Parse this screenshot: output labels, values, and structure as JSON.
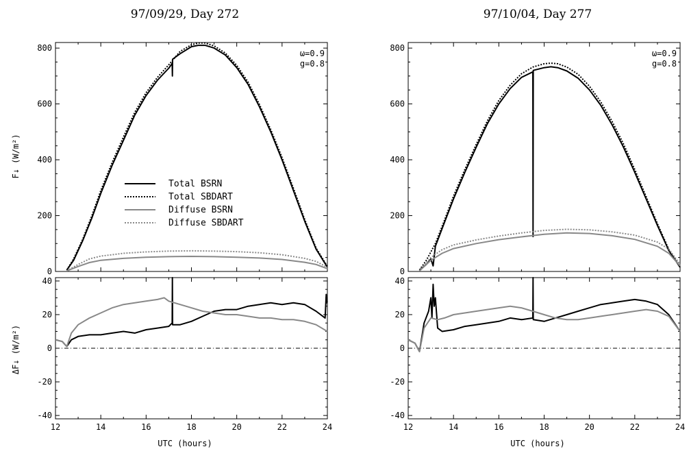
{
  "colors": {
    "black": "#000000",
    "gray": "#888888"
  },
  "chart_data": [
    {
      "type": "line",
      "title": "97/09/29, Day 272",
      "xlabel": "UTC (hours)",
      "annotation": [
        "ω=0.9",
        "g=0.8"
      ],
      "legend": {
        "position": "center-left",
        "entries": [
          "Total BSRN",
          "Total SBDART",
          "Diffuse BSRN",
          "Diffuse SBDART"
        ]
      },
      "xlim": [
        12,
        24
      ],
      "x_ticks": [
        12,
        14,
        16,
        18,
        20,
        22,
        24
      ],
      "top": {
        "ylabel": "F↓ (W/m²)",
        "ylim": [
          0,
          820
        ],
        "y_ticks": [
          0,
          200,
          400,
          600,
          800
        ],
        "series": [
          {
            "name": "Total BSRN",
            "style": "solid",
            "color": "#000000",
            "x": [
              12.5,
              12.8,
              13.2,
              13.6,
              14.0,
              14.5,
              15.0,
              15.5,
              16.0,
              16.5,
              17.0,
              17.15,
              17.16,
              17.17,
              17.5,
              18.0,
              18.3,
              18.6,
              19.0,
              19.5,
              20.0,
              20.5,
              21.0,
              21.5,
              22.0,
              22.5,
              23.0,
              23.5,
              24.0
            ],
            "y": [
              5,
              40,
              110,
              190,
              280,
              380,
              470,
              560,
              630,
              685,
              728,
              745,
              700,
              760,
              780,
              805,
              810,
              810,
              800,
              775,
              730,
              670,
              590,
              500,
              400,
              290,
              180,
              80,
              15
            ]
          },
          {
            "name": "Total SBDART",
            "style": "dotted",
            "color": "#000000",
            "x": [
              12.5,
              12.8,
              13.2,
              13.6,
              14.0,
              14.5,
              15.0,
              15.5,
              16.0,
              16.5,
              17.0,
              17.5,
              18.0,
              18.3,
              18.6,
              19.0,
              19.5,
              20.0,
              20.5,
              21.0,
              21.5,
              22.0,
              22.5,
              23.0,
              23.5,
              24.0
            ],
            "y": [
              5,
              45,
              115,
              198,
              290,
              390,
              482,
              570,
              640,
              695,
              740,
              788,
              812,
              818,
              818,
              808,
              782,
              738,
              678,
              598,
              508,
              408,
              298,
              186,
              84,
              18
            ]
          },
          {
            "name": "Diffuse BSRN",
            "style": "solid",
            "color": "#888888",
            "x": [
              12.5,
              13.0,
              13.5,
              14.0,
              15.0,
              16.0,
              17.0,
              18.0,
              19.0,
              20.0,
              21.0,
              22.0,
              23.0,
              23.5,
              24.0
            ],
            "y": [
              2,
              18,
              32,
              40,
              47,
              51,
              53,
              54,
              53,
              51,
              48,
              43,
              33,
              25,
              10
            ]
          },
          {
            "name": "Diffuse SBDART",
            "style": "dotted",
            "color": "#888888",
            "x": [
              12.5,
              13.0,
              13.5,
              14.0,
              15.0,
              16.0,
              17.0,
              18.0,
              19.0,
              20.0,
              21.0,
              22.0,
              23.0,
              23.5,
              24.0
            ],
            "y": [
              2,
              25,
              45,
              55,
              65,
              70,
              73,
              74,
              73,
              71,
              67,
              60,
              47,
              36,
              15
            ]
          }
        ]
      },
      "bottom": {
        "ylabel": "ΔF↓ (W/m²)",
        "ylim": [
          -42,
          42
        ],
        "y_ticks": [
          -40,
          -20,
          0,
          20,
          40
        ],
        "zero_line": "dash-dot",
        "series": [
          {
            "name": "Total BSRN",
            "color": "#000000",
            "x": [
              12.0,
              12.3,
              12.5,
              12.7,
              13.0,
              13.5,
              14.0,
              14.5,
              15.0,
              15.5,
              16.0,
              16.5,
              17.0,
              17.15,
              17.16,
              17.17,
              17.5,
              18.0,
              18.5,
              19.0,
              19.5,
              20.0,
              20.5,
              21.0,
              21.5,
              22.0,
              22.5,
              23.0,
              23.5,
              23.9,
              23.95,
              23.96,
              24.0
            ],
            "y": [
              5,
              4,
              1,
              5,
              7,
              8,
              8,
              9,
              10,
              9,
              11,
              12,
              13,
              15,
              42,
              14,
              14,
              16,
              19,
              22,
              23,
              23,
              25,
              26,
              27,
              26,
              27,
              26,
              22,
              18,
              32,
              27,
              28
            ]
          },
          {
            "name": "Diffuse BSRN",
            "color": "#888888",
            "x": [
              12.0,
              12.3,
              12.5,
              12.7,
              13.0,
              13.5,
              14.0,
              14.5,
              15.0,
              15.5,
              16.0,
              16.5,
              16.8,
              17.0,
              17.5,
              18.0,
              18.5,
              19.0,
              19.5,
              20.0,
              20.5,
              21.0,
              21.5,
              22.0,
              22.5,
              23.0,
              23.5,
              24.0
            ],
            "y": [
              5,
              4,
              1,
              9,
              14,
              18,
              21,
              24,
              26,
              27,
              28,
              29,
              30,
              28,
              26,
              24,
              22,
              21,
              20,
              20,
              19,
              18,
              18,
              17,
              17,
              16,
              14,
              10
            ]
          }
        ]
      }
    },
    {
      "type": "line",
      "title": "97/10/04, Day 277",
      "xlabel": "UTC (hours)",
      "annotation": [
        "ω=0.9",
        "g=0.8"
      ],
      "xlim": [
        12,
        24
      ],
      "x_ticks": [
        12,
        14,
        16,
        18,
        20,
        22,
        24
      ],
      "top": {
        "ylim": [
          0,
          820
        ],
        "y_ticks": [
          0,
          200,
          400,
          600,
          800
        ],
        "series": [
          {
            "name": "Total BSRN",
            "style": "solid",
            "color": "#000000",
            "x": [
              12.5,
              12.8,
              13.0,
              13.1,
              13.2,
              13.6,
              14.0,
              14.5,
              15.0,
              15.5,
              16.0,
              16.5,
              17.0,
              17.5,
              17.51,
              17.52,
              18.0,
              18.3,
              18.6,
              19.0,
              19.5,
              20.0,
              20.5,
              21.0,
              21.5,
              22.0,
              22.5,
              23.0,
              23.5,
              24.0
            ],
            "y": [
              5,
              25,
              45,
              20,
              90,
              175,
              260,
              355,
              445,
              530,
              600,
              655,
              695,
              715,
              125,
              720,
              730,
              733,
              730,
              718,
              692,
              650,
              595,
              525,
              445,
              355,
              260,
              165,
              75,
              15
            ]
          },
          {
            "name": "Total SBDART",
            "style": "dotted",
            "color": "#000000",
            "x": [
              12.5,
              12.8,
              13.2,
              13.6,
              14.0,
              14.5,
              15.0,
              15.5,
              16.0,
              16.5,
              17.0,
              17.5,
              18.0,
              18.3,
              18.6,
              19.0,
              19.5,
              20.0,
              20.5,
              21.0,
              21.5,
              22.0,
              22.5,
              23.0,
              23.5,
              24.0
            ],
            "y": [
              5,
              40,
              100,
              183,
              270,
              365,
              455,
              540,
              612,
              667,
              708,
              732,
              744,
              746,
              744,
              732,
              706,
              663,
              607,
              537,
              457,
              365,
              268,
              171,
              79,
              18
            ]
          },
          {
            "name": "Diffuse BSRN",
            "style": "solid",
            "color": "#888888",
            "x": [
              12.5,
              13.0,
              13.5,
              14.0,
              15.0,
              16.0,
              17.0,
              18.0,
              19.0,
              20.0,
              21.0,
              22.0,
              23.0,
              23.5,
              24.0
            ],
            "y": [
              2,
              40,
              65,
              82,
              100,
              114,
              124,
              133,
              138,
              136,
              128,
              115,
              90,
              65,
              20
            ]
          },
          {
            "name": "Diffuse SBDART",
            "style": "dotted",
            "color": "#888888",
            "x": [
              12.5,
              13.0,
              13.5,
              14.0,
              15.0,
              16.0,
              17.0,
              18.0,
              19.0,
              20.0,
              21.0,
              22.0,
              23.0,
              23.5,
              24.0
            ],
            "y": [
              2,
              50,
              78,
              95,
              113,
              127,
              138,
              147,
              151,
              149,
              142,
              130,
              105,
              80,
              25
            ]
          }
        ]
      },
      "bottom": {
        "ylim": [
          -42,
          42
        ],
        "y_ticks": [
          -40,
          -20,
          0,
          20,
          40
        ],
        "zero_line": "dash-dot",
        "series": [
          {
            "name": "Total BSRN",
            "color": "#000000",
            "x": [
              12.0,
              12.3,
              12.5,
              12.7,
              12.9,
              13.0,
              13.05,
              13.1,
              13.15,
              13.2,
              13.3,
              13.5,
              14.0,
              14.5,
              15.0,
              15.5,
              16.0,
              16.5,
              17.0,
              17.5,
              17.51,
              17.52,
              18.0,
              18.5,
              19.0,
              19.5,
              20.0,
              20.5,
              21.0,
              21.5,
              22.0,
              22.5,
              23.0,
              23.5,
              24.0
            ],
            "y": [
              5,
              3,
              -2,
              15,
              22,
              30,
              18,
              38,
              25,
              30,
              12,
              10,
              11,
              13,
              14,
              15,
              16,
              18,
              17,
              18,
              42,
              17,
              16,
              18,
              20,
              22,
              24,
              26,
              27,
              28,
              29,
              28,
              26,
              20,
              10
            ]
          },
          {
            "name": "Diffuse BSRN",
            "color": "#888888",
            "x": [
              12.0,
              12.3,
              12.5,
              12.7,
              13.0,
              13.3,
              13.6,
              14.0,
              15.0,
              16.0,
              16.5,
              17.0,
              17.5,
              18.0,
              18.5,
              19.0,
              19.5,
              20.0,
              20.5,
              21.0,
              21.5,
              22.0,
              22.5,
              23.0,
              23.5,
              24.0
            ],
            "y": [
              5,
              3,
              -2,
              12,
              18,
              17,
              18,
              20,
              22,
              24,
              25,
              24,
              22,
              20,
              18,
              17,
              17,
              18,
              19,
              20,
              21,
              22,
              23,
              22,
              19,
              10
            ]
          }
        ]
      }
    }
  ]
}
